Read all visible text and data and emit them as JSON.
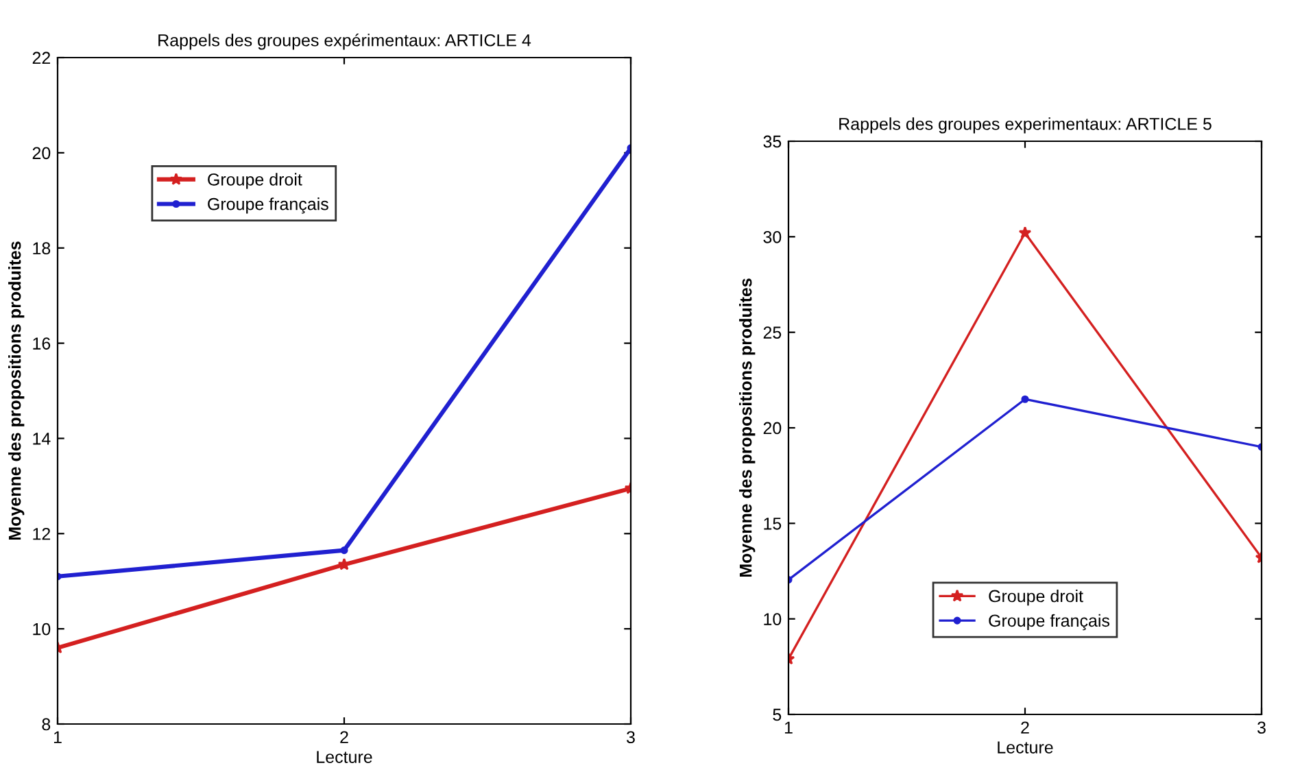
{
  "chart_data": [
    {
      "type": "line",
      "title": "Rappels des groupes expérimentaux: ARTICLE 4",
      "xlabel": "Lecture",
      "ylabel": "Moyenne des propositions produites",
      "x": [
        1,
        2,
        3
      ],
      "xlim": [
        1,
        3
      ],
      "xticks": [
        1,
        2,
        3
      ],
      "ylim": [
        8,
        22
      ],
      "yticks": [
        8,
        10,
        12,
        14,
        16,
        18,
        20,
        22
      ],
      "grid": false,
      "legend": "top left",
      "series": [
        {
          "name": "Groupe droit",
          "color": "#d42020",
          "marker": "star",
          "values": [
            9.6,
            11.35,
            12.95
          ]
        },
        {
          "name": "Groupe français",
          "color": "#2020d0",
          "marker": "circle",
          "values": [
            11.1,
            11.65,
            20.1
          ]
        }
      ]
    },
    {
      "type": "line",
      "title": "Rappels des groupes experimentaux: ARTICLE 5",
      "xlabel": "Lecture",
      "ylabel": "Moyenne des propositions produites",
      "x": [
        1,
        2,
        3
      ],
      "xlim": [
        1,
        3
      ],
      "xticks": [
        1,
        2,
        3
      ],
      "ylim": [
        5,
        35
      ],
      "yticks": [
        5,
        10,
        15,
        20,
        25,
        30,
        35
      ],
      "grid": false,
      "legend": "bottom",
      "series": [
        {
          "name": "Groupe droit",
          "color": "#d42020",
          "marker": "star",
          "values": [
            7.9,
            30.2,
            13.2
          ]
        },
        {
          "name": "Groupe français",
          "color": "#2020d0",
          "marker": "circle",
          "values": [
            12.05,
            21.5,
            19.0
          ]
        }
      ]
    }
  ]
}
